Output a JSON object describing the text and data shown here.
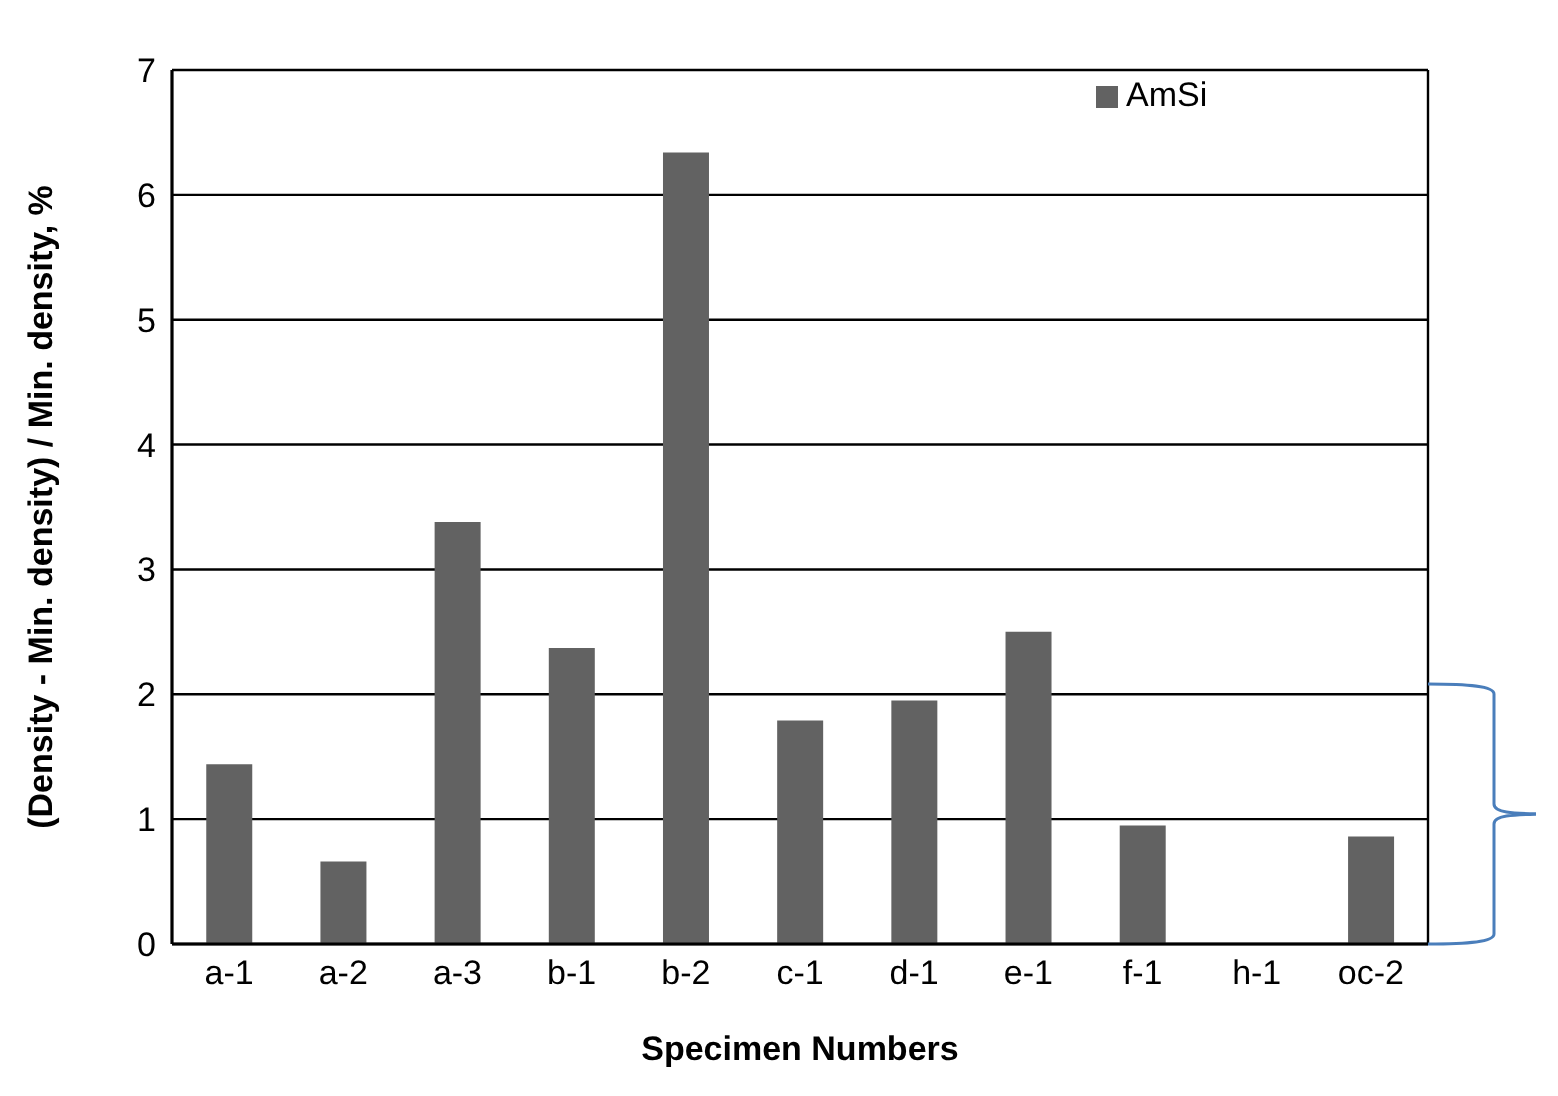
{
  "chart_data": {
    "type": "bar",
    "xlabel": "Specimen Numbers",
    "ylabel": "(Density - Min. density) / Min. density, %",
    "categories": [
      "a-1",
      "a-2",
      "a-3",
      "b-1",
      "b-2",
      "c-1",
      "d-1",
      "e-1",
      "f-1",
      "h-1",
      "oc-2"
    ],
    "series": [
      {
        "name": "AmSi",
        "color": "#626262",
        "values": [
          1.44,
          0.66,
          3.38,
          2.37,
          6.34,
          1.79,
          1.95,
          2.5,
          0.95,
          0,
          0.86
        ]
      }
    ],
    "ylim": [
      0,
      7
    ],
    "yticks": [
      0,
      1,
      2,
      3,
      4,
      5,
      6,
      7
    ],
    "grid": "y",
    "legend": "top right"
  }
}
